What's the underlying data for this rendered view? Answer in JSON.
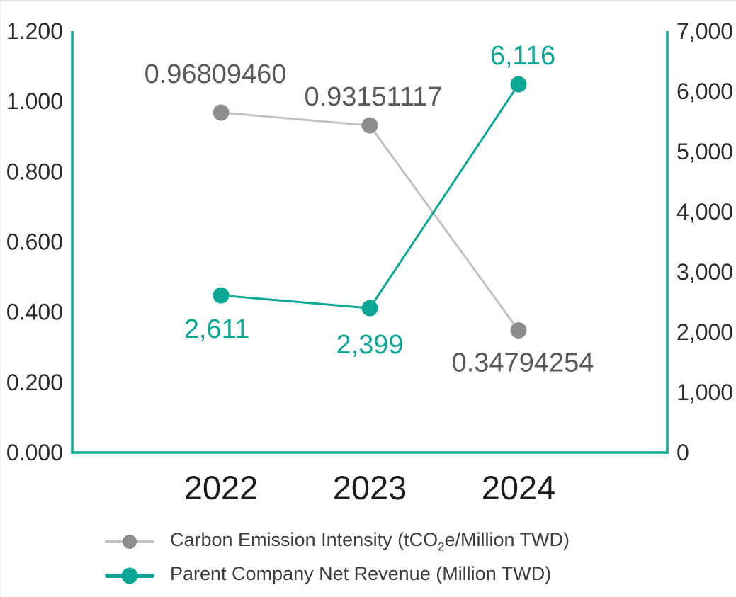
{
  "chart_data": {
    "type": "line",
    "title": "",
    "categories": [
      "2022",
      "2023",
      "2024"
    ],
    "series": [
      {
        "name": "Carbon Emission Intensity (tCO2e/Million TWD)",
        "axis": "left",
        "values": [
          0.9680946,
          0.93151117,
          0.34794254
        ],
        "point_labels": [
          "0.96809460",
          "0.93151117",
          "0.34794254"
        ],
        "point_color": "#8e8e8e",
        "line_color": "#c2c2c2",
        "label_color": "#595959"
      },
      {
        "name": "Parent Company Net Revenue (Million TWD)",
        "axis": "right",
        "values": [
          2611,
          2399,
          6116
        ],
        "point_labels": [
          "2,611",
          "2,399",
          "6,116"
        ],
        "point_color": "#0ba794",
        "line_color": "#0ba794",
        "label_color": "#0ba794"
      }
    ],
    "left_axis": {
      "min": 0,
      "max": 1.2,
      "ticks": [
        "0.000",
        "0.200",
        "0.400",
        "0.600",
        "0.800",
        "1.000",
        "1.200"
      ]
    },
    "right_axis": {
      "min": 0,
      "max": 7000,
      "ticks": [
        "0",
        "1,000",
        "2,000",
        "3,000",
        "4,000",
        "5,000",
        "6,000",
        "7,000"
      ]
    },
    "axis_color": "#0ba794",
    "tick_text_color": "#2b2b2b",
    "x_label_color": "#1d1d1d",
    "grid": false,
    "legend_position": "bottom-left",
    "legend": [
      {
        "label_pre": "Carbon Emission Intensity (tCO",
        "label_sub": "2",
        "label_post": "e/Million TWD)",
        "line_color": "#c2c2c2",
        "dot_color": "#8e8e8e"
      },
      {
        "label_pre": "Parent Company Net Revenue (Million TWD)",
        "label_sub": "",
        "label_post": "",
        "line_color": "#0ba794",
        "dot_color": "#0ba794"
      }
    ]
  }
}
